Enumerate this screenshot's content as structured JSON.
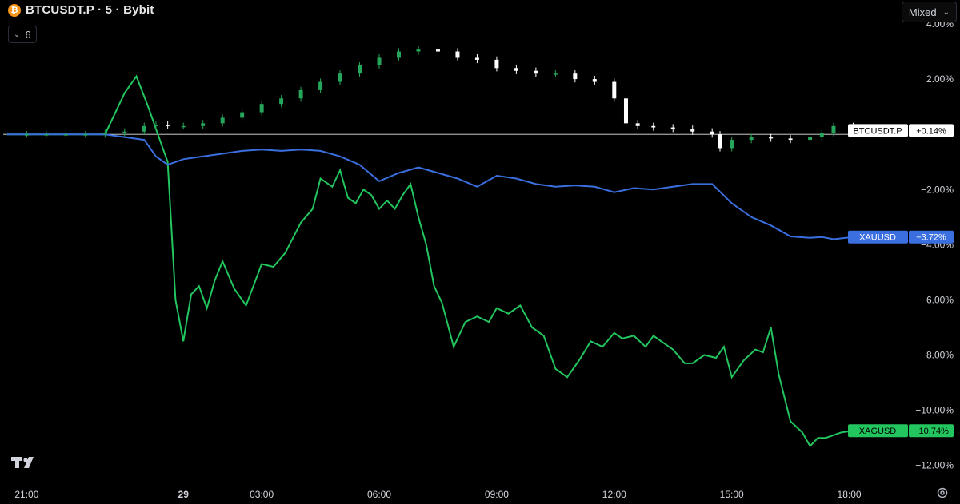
{
  "header": {
    "symbol_title": "BTCUSDT.P · 5 · Bybit",
    "coin_icon": "bitcoin-icon"
  },
  "indicator_toggle": {
    "count": "6"
  },
  "scale_mode": {
    "label": "Mixed"
  },
  "colors": {
    "btc_up": "#26a65b",
    "btc_down": "#ffffff",
    "xau": "#3b6fe0",
    "xag": "#22c55e",
    "axis_text": "#d1d4dc",
    "baseline": "#ffffff"
  },
  "chart_data": {
    "type": "line",
    "title": "BTCUSDT.P · 5 · Bybit",
    "x_ticks": [
      "21:00",
      "29",
      "03:00",
      "06:00",
      "09:00",
      "12:00",
      "15:00",
      "18:00"
    ],
    "y_ticks": [
      "4.00%",
      "2.00%",
      "−2.00%",
      "−4.00%",
      "−6.00%",
      "−8.00%",
      "−10.00%",
      "−12.00%"
    ],
    "ylim": [
      -12.5,
      4.0
    ],
    "xlim_hours_from_2100": [
      -0.6,
      22.5
    ],
    "series": [
      {
        "name": "BTCUSDT.P",
        "style": "candles",
        "last_label": "+0.14%",
        "x": [
          -0.5,
          0,
          0.5,
          1,
          1.5,
          2,
          2.5,
          3,
          3.3,
          3.6,
          4,
          4.5,
          5,
          5.5,
          6,
          6.5,
          7,
          7.5,
          8,
          8.5,
          9,
          9.5,
          10,
          10.5,
          11,
          11.5,
          12,
          12.5,
          13,
          13.5,
          14,
          14.5,
          15,
          15.3,
          15.6,
          16,
          16.5,
          17,
          17.5,
          17.7,
          18,
          18.5,
          19,
          19.5,
          20,
          20.3,
          20.6,
          21.1
        ],
        "y": [
          0,
          0,
          0,
          0,
          0,
          0.05,
          0.1,
          0.3,
          0.35,
          0.3,
          0.3,
          0.4,
          0.6,
          0.8,
          1.1,
          1.3,
          1.6,
          1.9,
          2.2,
          2.5,
          2.8,
          3.0,
          3.1,
          3.0,
          2.8,
          2.7,
          2.4,
          2.3,
          2.2,
          2.2,
          2.0,
          1.9,
          1.3,
          0.4,
          0.3,
          0.25,
          0.2,
          0.1,
          0,
          -0.5,
          -0.2,
          -0.1,
          -0.15,
          -0.2,
          -0.1,
          0.05,
          0.3,
          0.14
        ]
      },
      {
        "name": "XAUUSD",
        "style": "line",
        "last_label": "−3.72%",
        "x": [
          -0.5,
          1,
          2,
          3,
          3.3,
          3.6,
          4,
          4.5,
          5,
          5.5,
          6,
          6.5,
          7,
          7.5,
          8,
          8.5,
          9,
          9.5,
          10,
          10.5,
          11,
          11.5,
          12,
          12.5,
          13,
          13.5,
          14,
          14.5,
          15,
          15.5,
          16,
          16.5,
          17,
          17.5,
          18,
          18.5,
          19,
          19.5,
          20,
          20.3,
          20.6,
          21.1
        ],
        "y": [
          0,
          0,
          0,
          -0.2,
          -0.8,
          -1.1,
          -0.9,
          -0.8,
          -0.7,
          -0.6,
          -0.55,
          -0.6,
          -0.55,
          -0.6,
          -0.8,
          -1.1,
          -1.7,
          -1.4,
          -1.2,
          -1.4,
          -1.6,
          -1.9,
          -1.5,
          -1.6,
          -1.8,
          -1.9,
          -1.85,
          -1.9,
          -2.1,
          -1.95,
          -2.0,
          -1.9,
          -1.8,
          -1.8,
          -2.5,
          -3.0,
          -3.3,
          -3.7,
          -3.75,
          -3.72,
          -3.8,
          -3.72
        ]
      },
      {
        "name": "XAGUSD",
        "style": "line",
        "last_label": "−10.74%",
        "x": [
          -0.5,
          1,
          2,
          2.5,
          2.8,
          3.1,
          3.3,
          3.6,
          3.8,
          4,
          4.2,
          4.4,
          4.6,
          4.8,
          5,
          5.3,
          5.6,
          6,
          6.3,
          6.6,
          7,
          7.3,
          7.5,
          7.8,
          8,
          8.2,
          8.4,
          8.6,
          8.8,
          9,
          9.2,
          9.4,
          9.6,
          9.8,
          10,
          10.2,
          10.4,
          10.6,
          10.9,
          11.2,
          11.5,
          11.8,
          12,
          12.3,
          12.6,
          12.9,
          13.2,
          13.5,
          13.8,
          14.1,
          14.4,
          14.7,
          15,
          15.2,
          15.5,
          15.8,
          16,
          16.2,
          16.5,
          16.8,
          17,
          17.3,
          17.6,
          17.8,
          18,
          18.3,
          18.6,
          18.8,
          19,
          19.2,
          19.5,
          19.8,
          20,
          20.2,
          20.4,
          20.6,
          20.8,
          21.1
        ],
        "y": [
          0,
          0,
          0,
          1.5,
          2.1,
          1.0,
          0.2,
          -1.0,
          -6.0,
          -7.5,
          -5.8,
          -5.5,
          -6.3,
          -5.3,
          -4.6,
          -5.6,
          -6.2,
          -4.7,
          -4.8,
          -4.3,
          -3.2,
          -2.7,
          -1.6,
          -1.9,
          -1.3,
          -2.3,
          -2.5,
          -2.0,
          -2.2,
          -2.7,
          -2.4,
          -2.7,
          -2.2,
          -1.8,
          -3.0,
          -4.0,
          -5.5,
          -6.1,
          -7.7,
          -6.8,
          -6.6,
          -6.8,
          -6.3,
          -6.5,
          -6.2,
          -7.0,
          -7.3,
          -8.5,
          -8.8,
          -8.2,
          -7.5,
          -7.7,
          -7.2,
          -7.4,
          -7.3,
          -7.7,
          -7.3,
          -7.5,
          -7.8,
          -8.3,
          -8.3,
          -8.0,
          -8.1,
          -7.7,
          -8.8,
          -8.2,
          -7.8,
          -7.9,
          -7.0,
          -8.7,
          -10.4,
          -10.8,
          -11.3,
          -11.0,
          -11.0,
          -10.9,
          -10.8,
          -10.74
        ]
      }
    ]
  }
}
